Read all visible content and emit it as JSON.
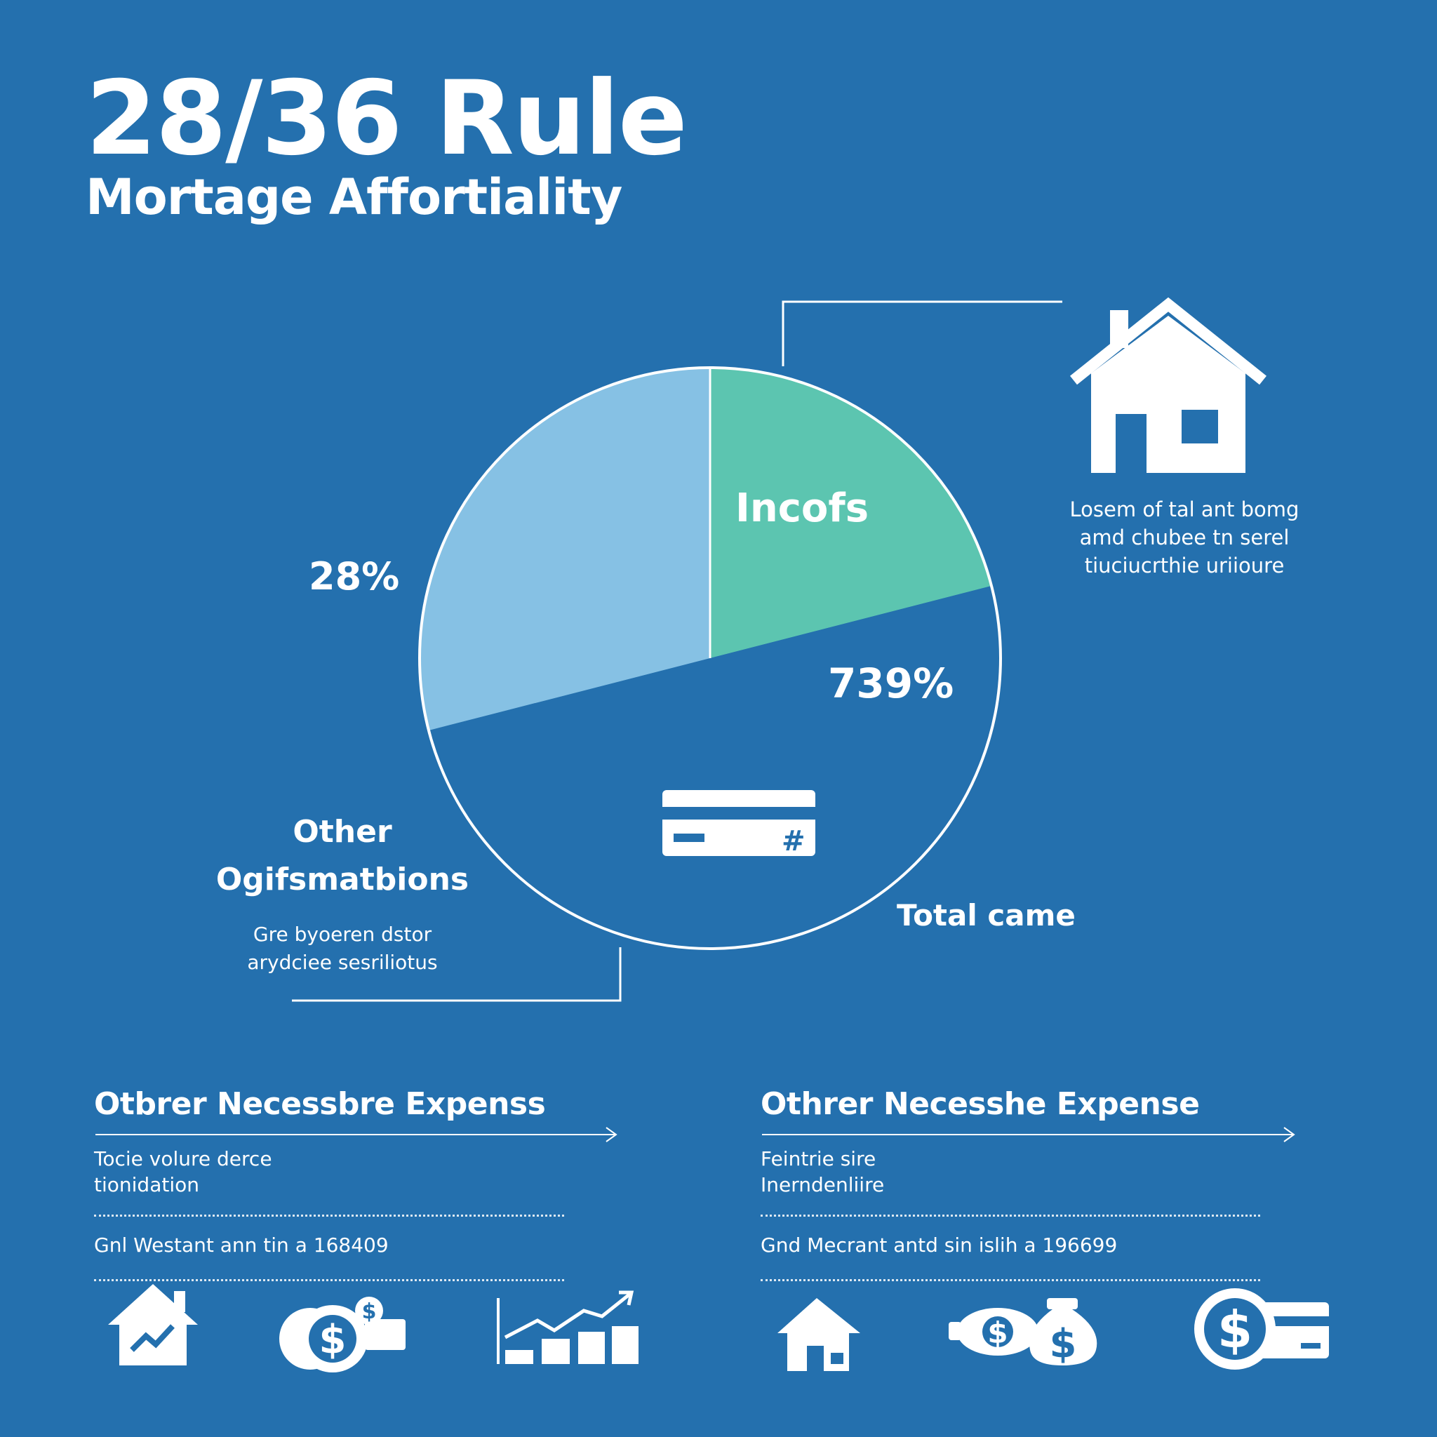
{
  "header": {
    "title": "28/36 Rule",
    "subtitle": "Mortage Affortiality"
  },
  "chart_data": {
    "type": "pie",
    "slices": [
      {
        "label": "Incofs",
        "value": 21,
        "color": "#5cc5b0"
      },
      {
        "label": "Total came",
        "value": 50,
        "color": "#2470ae"
      },
      {
        "label": "Other Ogifsmatbions",
        "value": 29,
        "color": "#86c1e4"
      }
    ],
    "annotations": [
      "28%",
      "739%"
    ],
    "outline_color": "#ffffff"
  },
  "labels": {
    "left_pct": "28%",
    "right_pct": "739%",
    "incofs": "Incofs",
    "other_line1": "Other",
    "other_line2": "Ogifsmatbions",
    "total_came": "Total came"
  },
  "icons": {
    "house_main": "house-icon",
    "credit_card": "credit-card-icon"
  },
  "notes": {
    "right": [
      "Losem of tal ant bomg",
      "amd chubee tn serel",
      "tiuciucrthie uriioure"
    ],
    "left": [
      "Gre byoeren dstor",
      "arydciee sesriliotus"
    ]
  },
  "sections": [
    {
      "title": "Otbrer Necessbre Expenss",
      "lines": [
        "Tocie volure derce",
        "tionidation"
      ],
      "footer": "Gnl Westant ann tin a 168409",
      "icons": [
        "house-growth-icon",
        "money-icon",
        "bar-chart-icon"
      ]
    },
    {
      "title": "Othrer Necesshe Expense",
      "lines": [
        "Feintrie sire",
        "Inerndenliire"
      ],
      "footer": "Gnd Mecrant antd sin islih a 196699",
      "icons": [
        "house-icon",
        "money-bag-icon",
        "dollar-card-icon"
      ]
    }
  ]
}
